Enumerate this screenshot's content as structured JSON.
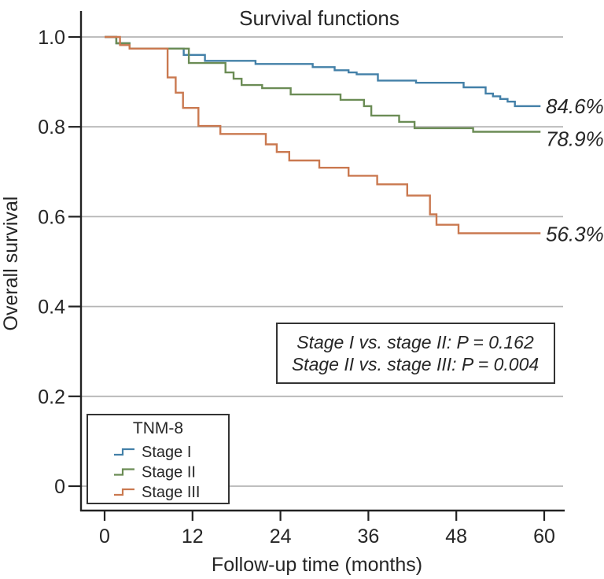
{
  "title": "Survival functions",
  "legend": {
    "title": "TNM-8"
  },
  "annotation_box": {
    "lines": [
      "Stage I vs. stage II: P = 0.162",
      "Stage II vs. stage III: P = 0.004"
    ]
  },
  "colors": {
    "grid": "#b5b5b5",
    "axis": "#222222",
    "stage_i": "#4380a8",
    "stage_ii": "#6b8c55",
    "stage_iii": "#ca7950"
  },
  "chart_data": {
    "type": "line",
    "variant": "kaplan-meier-step",
    "title": "Survival functions",
    "xlabel": "Follow-up time (months)",
    "ylabel": "Overall survival",
    "xlim": [
      0,
      60
    ],
    "ylim": [
      0,
      1.0
    ],
    "grid": "horizontal",
    "legend_position": "bottom-left-box",
    "xticks": [
      {
        "v": 0,
        "label": "0"
      },
      {
        "v": 12,
        "label": "12"
      },
      {
        "v": 24,
        "label": "24"
      },
      {
        "v": 36,
        "label": "36"
      },
      {
        "v": 48,
        "label": "48"
      },
      {
        "v": 60,
        "label": "60"
      }
    ],
    "yticks": [
      {
        "v": 1.0,
        "label": "1.0"
      },
      {
        "v": 0.8,
        "label": "0.8"
      },
      {
        "v": 0.6,
        "label": "0.6"
      },
      {
        "v": 0.4,
        "label": "0.4"
      },
      {
        "v": 0.2,
        "label": "0.2"
      },
      {
        "v": 0.0,
        "label": "0"
      }
    ],
    "series": [
      {
        "name": "Stage I",
        "color": "#4380a8",
        "end_label": "84.6%",
        "end_survival": 0.846,
        "end_time": 59.5,
        "steps": [
          [
            0,
            1.0
          ],
          [
            1.6,
            0.986
          ],
          [
            3.4,
            0.974
          ],
          [
            10.8,
            0.96
          ],
          [
            13.7,
            0.947
          ],
          [
            20.6,
            0.94
          ],
          [
            28.4,
            0.933
          ],
          [
            31.4,
            0.926
          ],
          [
            33.3,
            0.921
          ],
          [
            34.4,
            0.917
          ],
          [
            37.3,
            0.903
          ],
          [
            42.5,
            0.898
          ],
          [
            49.0,
            0.888
          ],
          [
            52.0,
            0.874
          ],
          [
            53.0,
            0.868
          ],
          [
            54.0,
            0.862
          ],
          [
            55.0,
            0.856
          ],
          [
            56.0,
            0.846
          ]
        ]
      },
      {
        "name": "Stage II",
        "color": "#6b8c55",
        "end_label": "78.9%",
        "end_survival": 0.789,
        "end_time": 59.5,
        "steps": [
          [
            0,
            1.0
          ],
          [
            1.6,
            0.986
          ],
          [
            3.4,
            0.974
          ],
          [
            11.5,
            0.942
          ],
          [
            16.5,
            0.921
          ],
          [
            17.6,
            0.907
          ],
          [
            18.7,
            0.893
          ],
          [
            21.5,
            0.886
          ],
          [
            25.4,
            0.872
          ],
          [
            32.2,
            0.86
          ],
          [
            35.4,
            0.846
          ],
          [
            36.4,
            0.825
          ],
          [
            40.2,
            0.811
          ],
          [
            42.3,
            0.797
          ],
          [
            50.3,
            0.789
          ]
        ]
      },
      {
        "name": "Stage III",
        "color": "#ca7950",
        "end_label": "56.3%",
        "end_survival": 0.563,
        "end_time": 59.5,
        "steps": [
          [
            0,
            1.0
          ],
          [
            2.1,
            0.982
          ],
          [
            3.4,
            0.974
          ],
          [
            8.6,
            0.91
          ],
          [
            9.7,
            0.876
          ],
          [
            10.7,
            0.842
          ],
          [
            12.8,
            0.802
          ],
          [
            15.8,
            0.784
          ],
          [
            22.0,
            0.761
          ],
          [
            23.5,
            0.744
          ],
          [
            25.2,
            0.725
          ],
          [
            29.3,
            0.709
          ],
          [
            33.3,
            0.691
          ],
          [
            37.2,
            0.672
          ],
          [
            41.3,
            0.647
          ],
          [
            44.4,
            0.605
          ],
          [
            45.3,
            0.582
          ],
          [
            48.3,
            0.563
          ]
        ]
      }
    ]
  }
}
